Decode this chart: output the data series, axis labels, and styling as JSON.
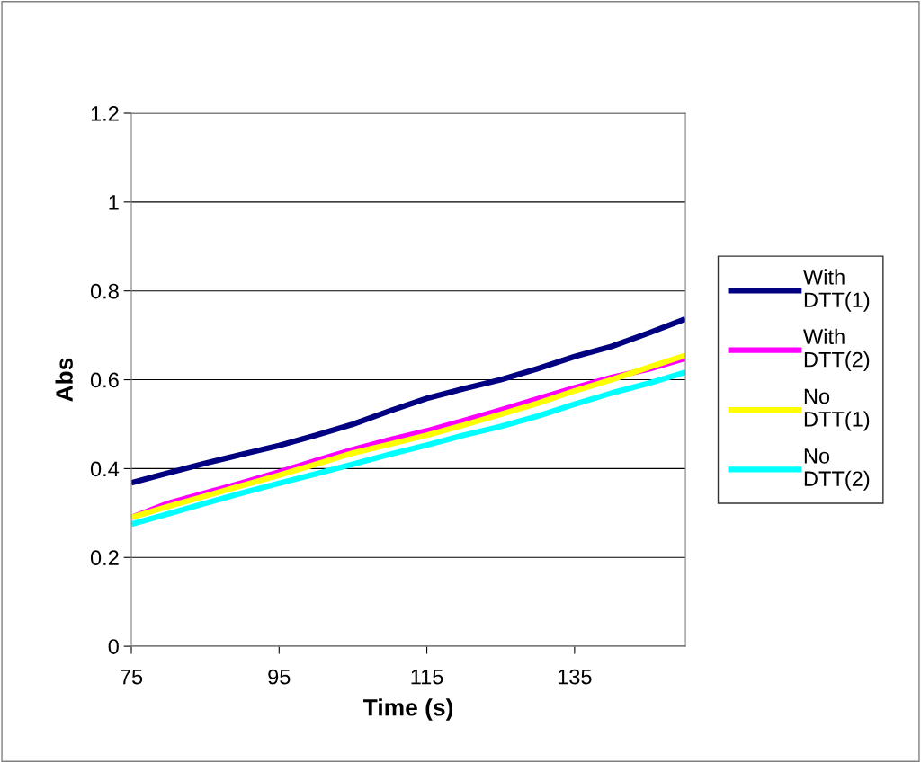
{
  "chart_data": {
    "type": "line",
    "xlabel": "Time (s)",
    "ylabel": "Abs",
    "x": [
      75,
      80,
      85,
      90,
      95,
      100,
      105,
      110,
      115,
      120,
      125,
      130,
      135,
      140,
      145,
      150
    ],
    "series": [
      {
        "name": "With\nDTT(1)",
        "color": "#000080",
        "values": [
          0.368,
          0.39,
          0.412,
          0.432,
          0.452,
          0.475,
          0.5,
          0.53,
          0.558,
          0.58,
          0.6,
          0.625,
          0.652,
          0.675,
          0.705,
          0.737
        ]
      },
      {
        "name": "With\nDTT(2)",
        "color": "#ff00ff",
        "values": [
          0.29,
          0.322,
          0.345,
          0.368,
          0.392,
          0.418,
          0.443,
          0.465,
          0.485,
          0.508,
          0.532,
          0.557,
          0.582,
          0.605,
          0.624,
          0.648
        ]
      },
      {
        "name": "No\nDTT(1)",
        "color": "#ffff00",
        "values": [
          0.29,
          0.315,
          0.338,
          0.362,
          0.385,
          0.41,
          0.435,
          0.455,
          0.475,
          0.498,
          0.522,
          0.547,
          0.575,
          0.6,
          0.628,
          0.655
        ]
      },
      {
        "name": "No\nDTT(2)",
        "color": "#00ffff",
        "values": [
          0.275,
          0.298,
          0.322,
          0.345,
          0.367,
          0.388,
          0.41,
          0.432,
          0.453,
          0.475,
          0.495,
          0.518,
          0.545,
          0.57,
          0.592,
          0.617
        ]
      }
    ],
    "xlim": [
      75,
      150
    ],
    "xticks": [
      75,
      95,
      115,
      135
    ],
    "ylim": [
      0,
      1.2
    ],
    "yticks": [
      0,
      0.2,
      0.4,
      0.6,
      0.8,
      1,
      1.2
    ],
    "grid": "y",
    "legend": "right",
    "marker": "none",
    "line_style": "solid"
  }
}
